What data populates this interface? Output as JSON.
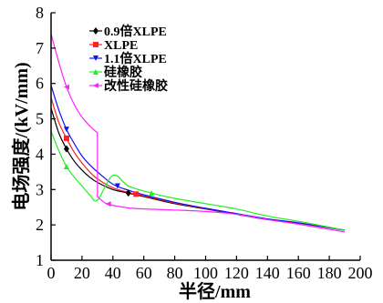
{
  "chart_data": {
    "type": "line",
    "xlabel": "半径/mm",
    "ylabel": "电场强度/(kV/mm)",
    "xlim": [
      0,
      200
    ],
    "ylim": [
      1,
      8
    ],
    "x_ticks": [
      0,
      20,
      40,
      60,
      80,
      100,
      120,
      140,
      160,
      180,
      200
    ],
    "x_tick_labels": [
      "0",
      "20",
      "40",
      "60",
      "80",
      "100",
      "120",
      "140",
      "160",
      "180",
      "200"
    ],
    "y_ticks": [
      1,
      2,
      3,
      4,
      5,
      6,
      7,
      8
    ],
    "y_tick_labels": [
      "1",
      "2",
      "3",
      "4",
      "5",
      "6",
      "7",
      "8"
    ],
    "grid": false,
    "legend_position": "top-left",
    "series": [
      {
        "name": "0.9倍XLPE",
        "color": "#000000",
        "marker": "diamond",
        "x": [
          0,
          5,
          10,
          15,
          20,
          25,
          30,
          40,
          50,
          60,
          80,
          100,
          120,
          140,
          160,
          190
        ],
        "y": [
          5.3,
          4.6,
          4.15,
          3.8,
          3.55,
          3.35,
          3.2,
          3.0,
          2.9,
          2.8,
          2.6,
          2.45,
          2.3,
          2.15,
          2.05,
          1.85
        ],
        "markers_at": [
          10,
          50
        ]
      },
      {
        "name": "XLPE",
        "color": "#ff2020",
        "marker": "square",
        "x": [
          0,
          5,
          10,
          15,
          20,
          25,
          30,
          40,
          50,
          60,
          80,
          100,
          120,
          140,
          160,
          190
        ],
        "y": [
          5.6,
          4.9,
          4.45,
          4.05,
          3.75,
          3.5,
          3.3,
          3.05,
          2.92,
          2.82,
          2.62,
          2.46,
          2.31,
          2.16,
          2.05,
          1.85
        ],
        "markers_at": [
          10,
          55
        ]
      },
      {
        "name": "1.1倍XLPE",
        "color": "#1010ff",
        "marker": "triangle-down",
        "x": [
          0,
          5,
          10,
          15,
          20,
          25,
          30,
          40,
          50,
          60,
          80,
          100,
          120,
          140,
          160,
          190
        ],
        "y": [
          5.95,
          5.25,
          4.7,
          4.3,
          3.95,
          3.7,
          3.5,
          3.15,
          2.98,
          2.85,
          2.64,
          2.47,
          2.32,
          2.17,
          2.06,
          1.85
        ],
        "markers_at": [
          10,
          43
        ]
      },
      {
        "name": "硅橡胶",
        "color": "#22ee22",
        "marker": "triangle-up",
        "x": [
          0,
          5,
          10,
          15,
          20,
          25,
          30,
          40,
          50,
          65,
          80,
          100,
          120,
          140,
          160,
          190
        ],
        "y": [
          4.65,
          4.1,
          3.65,
          3.35,
          3.1,
          2.85,
          2.7,
          3.4,
          3.1,
          2.9,
          2.75,
          2.6,
          2.45,
          2.25,
          2.1,
          1.85
        ],
        "markers_at": [
          10,
          65
        ]
      },
      {
        "name": "改性硅橡胶",
        "color": "#ff22ff",
        "marker": "triangle-left",
        "x": [
          0,
          5,
          10,
          15,
          20,
          25,
          30,
          30,
          35,
          40,
          50,
          60,
          80,
          100,
          120,
          140,
          160,
          190
        ],
        "y": [
          7.4,
          6.6,
          5.9,
          5.4,
          5.05,
          4.8,
          4.6,
          2.8,
          2.62,
          2.55,
          2.48,
          2.45,
          2.42,
          2.38,
          2.3,
          2.15,
          2.02,
          1.8
        ],
        "markers_at": [
          10,
          37
        ]
      }
    ]
  }
}
